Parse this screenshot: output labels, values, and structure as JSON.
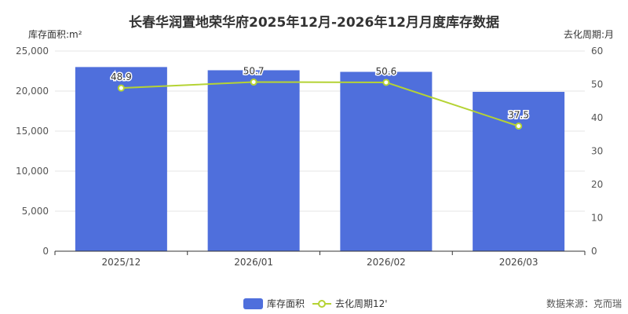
{
  "chart_data": {
    "type": "bar",
    "title": "长春华润置地荣华府2025年12月-2026年12月月度库存数据",
    "categories": [
      "2025/12",
      "2026/01",
      "2026/02",
      "2026/03"
    ],
    "series": [
      {
        "name": "库存面积",
        "type": "bar",
        "axis": "left",
        "color": "#4f6fdc",
        "values": [
          23000,
          22600,
          22400,
          19900
        ]
      },
      {
        "name": "去化周期12'",
        "type": "line",
        "axis": "right",
        "color": "#b5d334",
        "values": [
          48.9,
          50.7,
          50.6,
          37.5
        ]
      }
    ],
    "y_left": {
      "label": "库存面积:m²",
      "min": 0,
      "max": 25000,
      "ticks": [
        "0",
        "5,000",
        "10,000",
        "15,000",
        "20,000",
        "25,000"
      ]
    },
    "y_right": {
      "label": "去化周期:月",
      "min": 0,
      "max": 60,
      "ticks": [
        "0",
        "10",
        "20",
        "30",
        "40",
        "50",
        "60"
      ]
    },
    "grid": true,
    "legend_position": "bottom-center",
    "source": "数据来源：克而瑞"
  }
}
